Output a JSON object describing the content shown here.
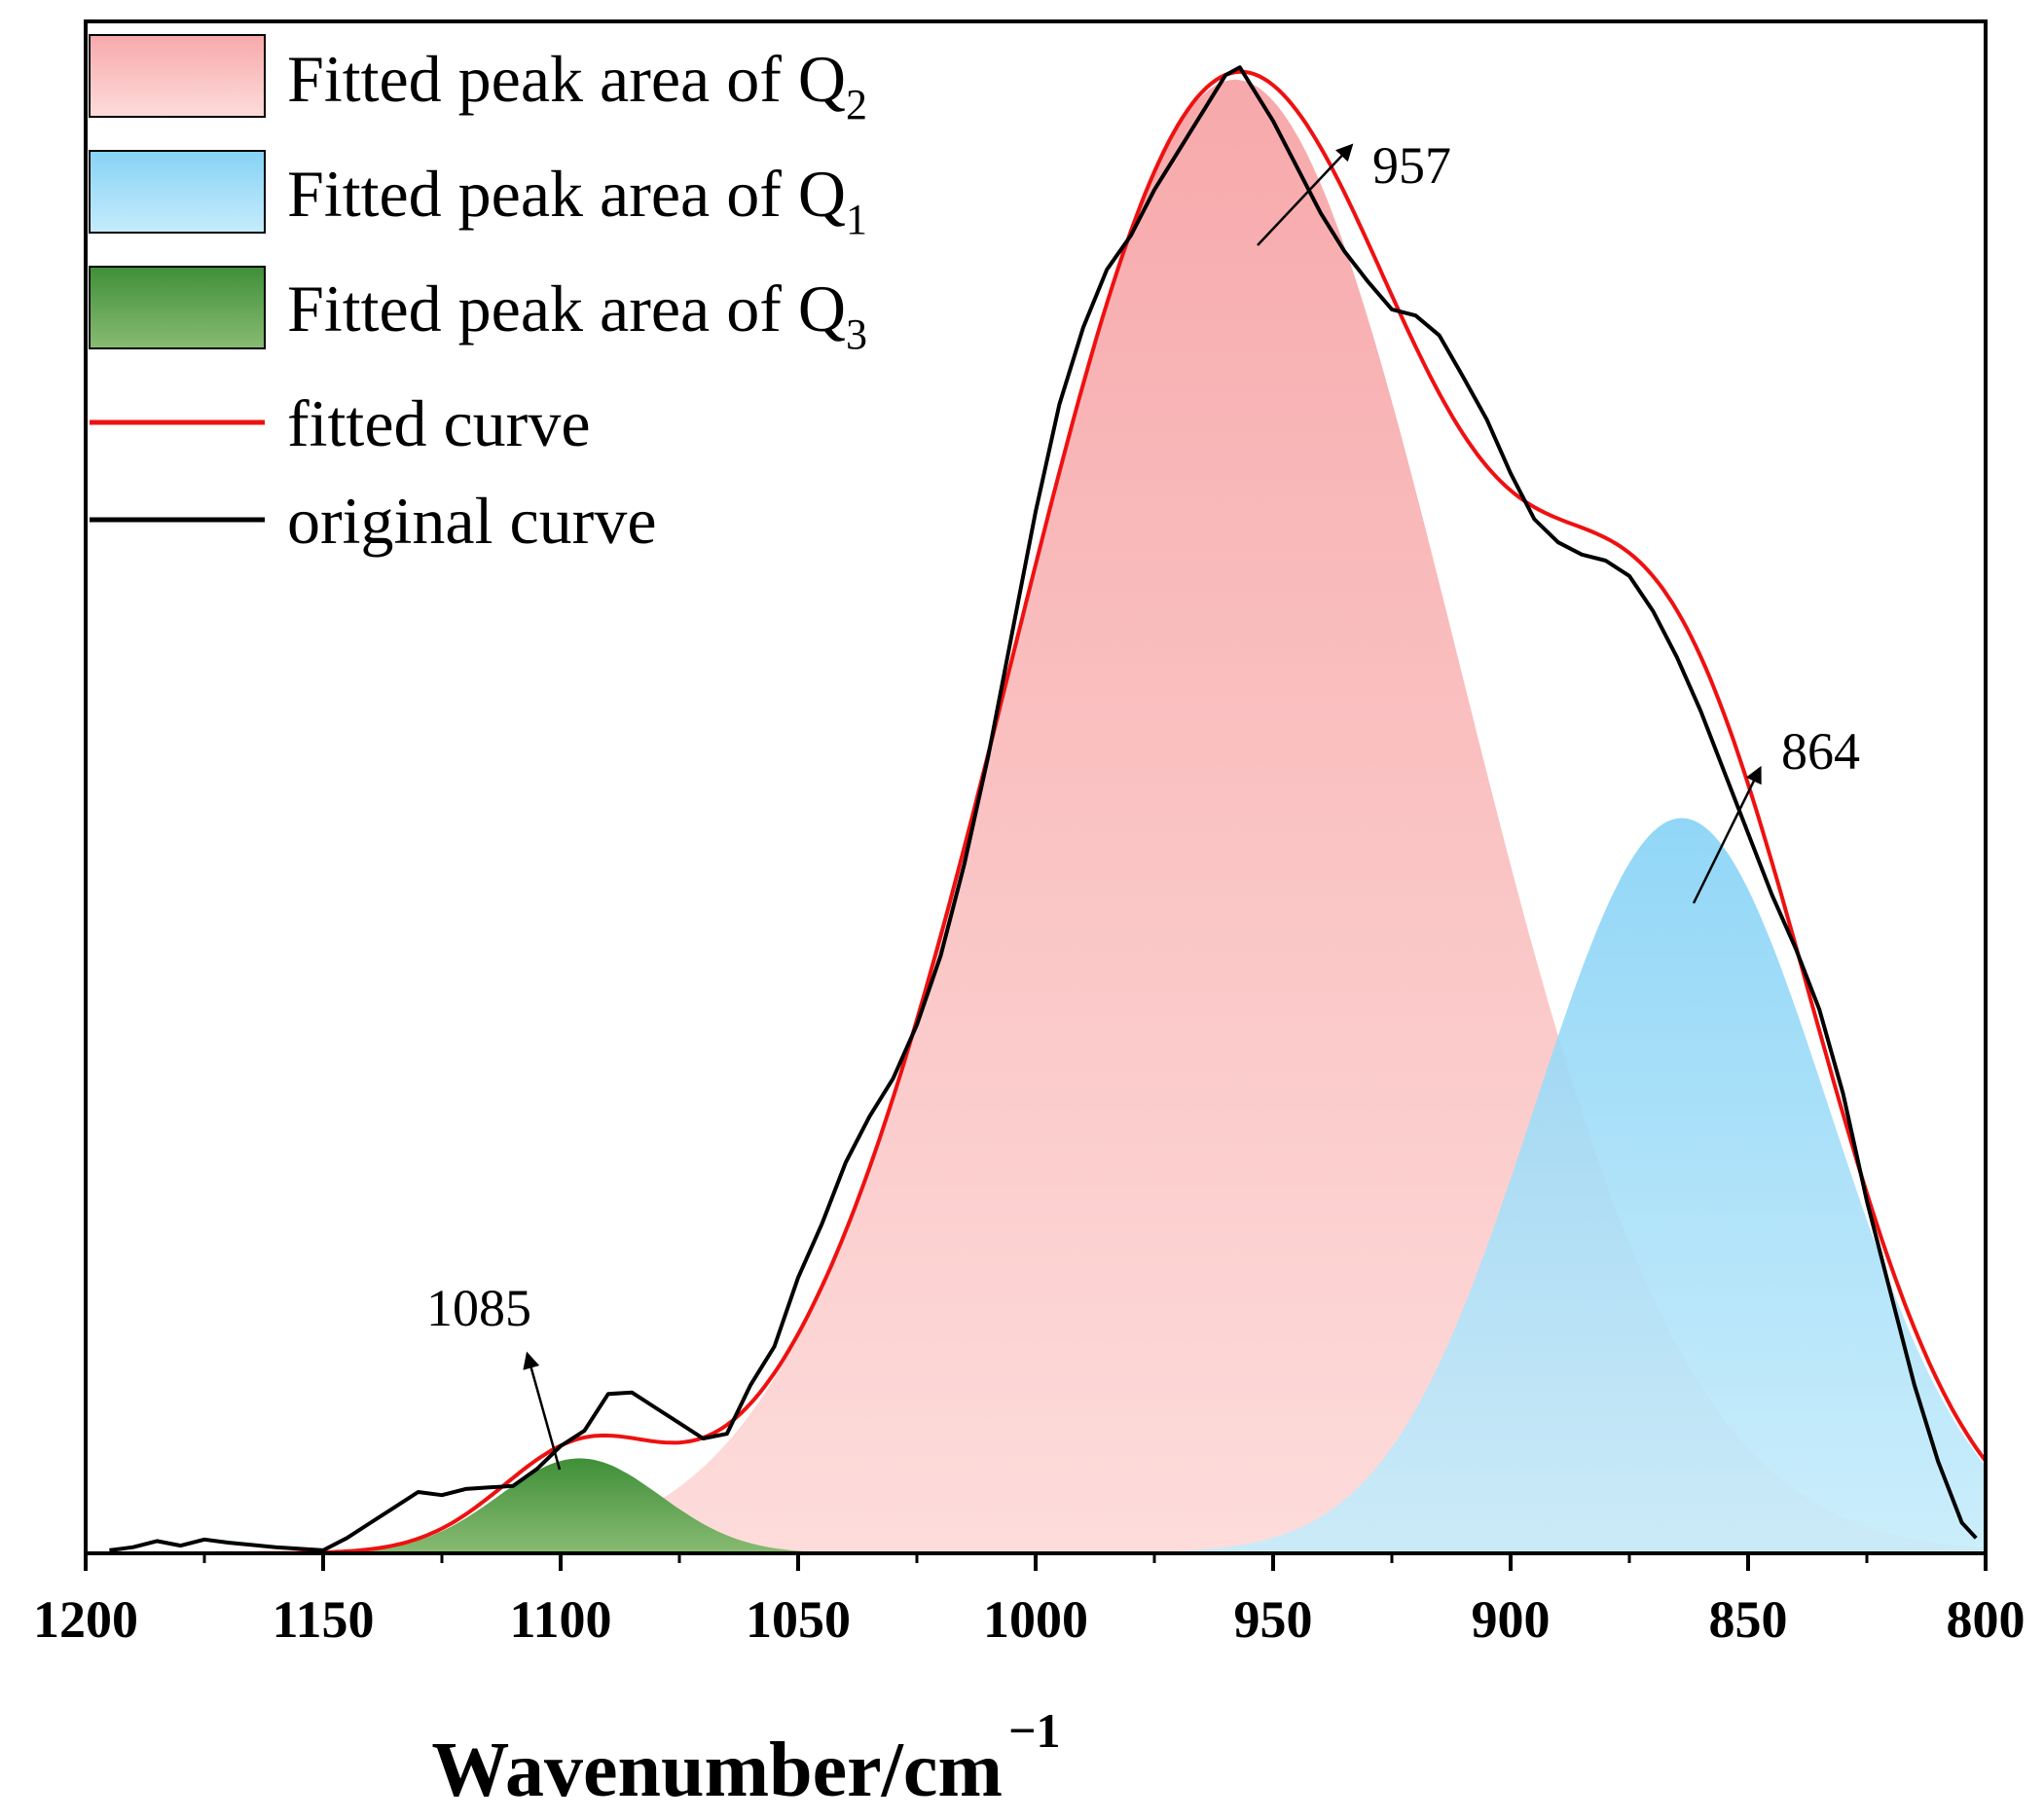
{
  "chart_data": {
    "type": "area",
    "title": "",
    "xlabel": "Wavenumber/cm",
    "xlabel_superscript": "−1",
    "ylabel": "",
    "xlim": [
      1200,
      800
    ],
    "ylim": [
      0,
      1.0
    ],
    "x_reversed": true,
    "grid": false,
    "legend_position": "top-left",
    "x_ticks": [
      1200,
      1150,
      1100,
      1050,
      1000,
      950,
      900,
      850,
      800
    ],
    "x_tick_labels": [
      "1200",
      "1150",
      "1100",
      "1050",
      "1000",
      "950",
      "900",
      "850",
      "800"
    ],
    "colors": {
      "q2_fill": "#f7aeb0",
      "q1_fill": "#8fd6f5",
      "q3_fill": "#4f9a43",
      "fitted_curve": "#ee1111",
      "original_curve": "#000000"
    },
    "legend": [
      {
        "key": "q2",
        "label": "Fitted peak area of Q",
        "sub": "2",
        "kind": "area"
      },
      {
        "key": "q1",
        "label": "Fitted peak area of Q",
        "sub": "1",
        "kind": "area"
      },
      {
        "key": "q3",
        "label": "Fitted peak area of Q",
        "sub": "3",
        "kind": "area"
      },
      {
        "key": "fitted",
        "label": "fitted curve",
        "sub": "",
        "kind": "line"
      },
      {
        "key": "original",
        "label": "original curve",
        "sub": "",
        "kind": "line"
      }
    ],
    "series": [
      {
        "name": "Fitted peak area of Q2",
        "key": "q2",
        "type": "gaussian",
        "center": 958,
        "height": 0.962,
        "sigma": 47
      },
      {
        "name": "Fitted peak area of Q1",
        "key": "q1",
        "type": "gaussian",
        "center": 864,
        "height": 0.48,
        "sigma": 31
      },
      {
        "name": "Fitted peak area of Q3",
        "key": "q3",
        "type": "gaussian",
        "center": 1096,
        "height": 0.062,
        "sigma": 17
      },
      {
        "name": "fitted curve",
        "key": "fitted",
        "type": "line",
        "sum_of": [
          "q2",
          "q1",
          "q3"
        ]
      },
      {
        "name": "original curve",
        "key": "original",
        "type": "line",
        "x": [
          1195,
          1190,
          1185,
          1180,
          1175,
          1170,
          1160,
          1150,
          1145,
          1140,
          1135,
          1130,
          1125,
          1120,
          1115,
          1110,
          1105,
          1100,
          1095,
          1090,
          1085,
          1080,
          1075,
          1070,
          1065,
          1060,
          1055,
          1050,
          1045,
          1040,
          1035,
          1030,
          1025,
          1020,
          1015,
          1010,
          1005,
          1000,
          995,
          990,
          985,
          980,
          975,
          970,
          965,
          960,
          957,
          955,
          950,
          945,
          940,
          935,
          930,
          925,
          920,
          915,
          910,
          905,
          900,
          895,
          890,
          885,
          880,
          875,
          870,
          865,
          860,
          855,
          850,
          845,
          840,
          835,
          830,
          825,
          820,
          815,
          810,
          805,
          802
        ],
        "y": [
          0.002,
          0.004,
          0.008,
          0.005,
          0.009,
          0.007,
          0.004,
          0.002,
          0.01,
          0.02,
          0.03,
          0.04,
          0.038,
          0.042,
          0.043,
          0.044,
          0.055,
          0.07,
          0.08,
          0.104,
          0.105,
          0.095,
          0.085,
          0.075,
          0.078,
          0.11,
          0.135,
          0.18,
          0.215,
          0.255,
          0.285,
          0.31,
          0.345,
          0.39,
          0.45,
          0.52,
          0.6,
          0.68,
          0.75,
          0.8,
          0.838,
          0.86,
          0.89,
          0.915,
          0.94,
          0.965,
          0.97,
          0.96,
          0.935,
          0.905,
          0.875,
          0.85,
          0.83,
          0.812,
          0.808,
          0.795,
          0.768,
          0.74,
          0.705,
          0.675,
          0.66,
          0.652,
          0.648,
          0.638,
          0.615,
          0.585,
          0.55,
          0.51,
          0.47,
          0.43,
          0.395,
          0.355,
          0.3,
          0.23,
          0.17,
          0.11,
          0.06,
          0.02,
          0.01
        ]
      }
    ],
    "annotations": [
      {
        "text": "957",
        "x": 957
      },
      {
        "text": "864",
        "x": 864
      },
      {
        "text": "1085",
        "x": 1085
      }
    ]
  }
}
